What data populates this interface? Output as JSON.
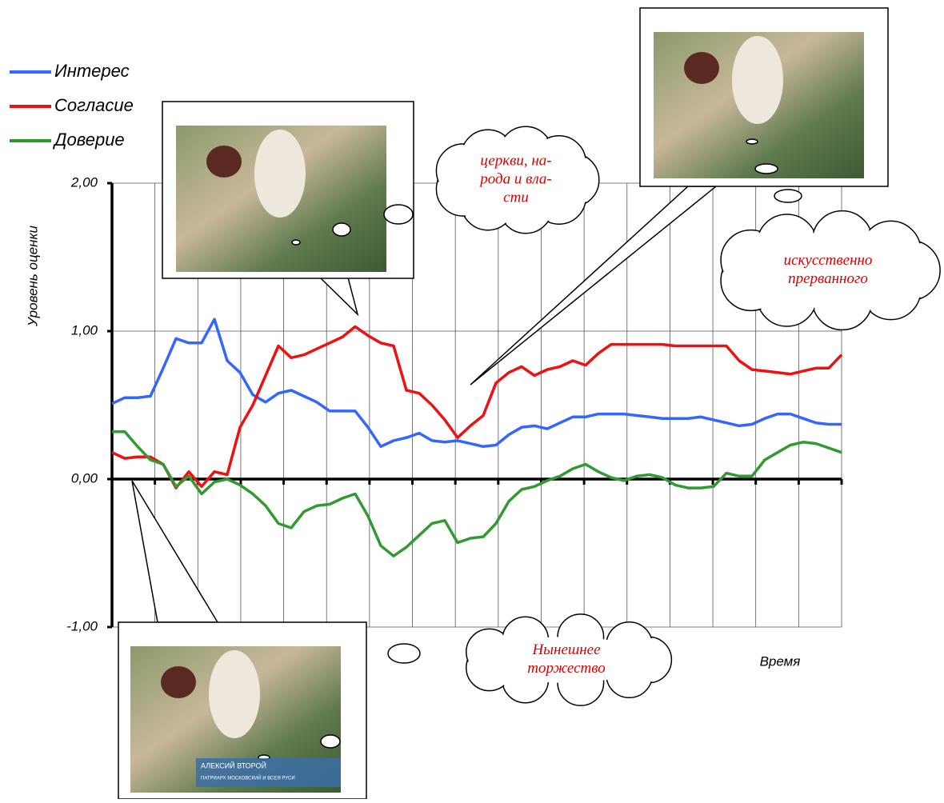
{
  "chart_data": {
    "type": "line",
    "y_label": "Уровень оценки",
    "x_label": "Время",
    "ylim": [
      -1,
      2
    ],
    "yticks": [
      {
        "value": -1,
        "label": "-1,00"
      },
      {
        "value": 0,
        "label": "0,00"
      },
      {
        "value": 1,
        "label": "1,00"
      },
      {
        "value": 2,
        "label": "2,00"
      }
    ],
    "x_divisions": 17,
    "grid": true,
    "legend": "top-left",
    "series": [
      {
        "name": "Интерес",
        "color": "#3366ff",
        "values": [
          0.51,
          0.55,
          0.55,
          0.56,
          0.75,
          0.95,
          0.92,
          0.92,
          1.08,
          0.8,
          0.72,
          0.57,
          0.52,
          0.58,
          0.6,
          0.56,
          0.52,
          0.46,
          0.46,
          0.46,
          0.35,
          0.22,
          0.26,
          0.28,
          0.31,
          0.26,
          0.25,
          0.26,
          0.24,
          0.22,
          0.23,
          0.3,
          0.35,
          0.36,
          0.34,
          0.38,
          0.42,
          0.42,
          0.44,
          0.44,
          0.44,
          0.43,
          0.42,
          0.41,
          0.41,
          0.41,
          0.42,
          0.4,
          0.38,
          0.36,
          0.37,
          0.41,
          0.44,
          0.44,
          0.41,
          0.38,
          0.37,
          0.37
        ]
      },
      {
        "name": "Согласие",
        "color": "#ee1111",
        "values": [
          0.18,
          0.14,
          0.15,
          0.15,
          0.1,
          -0.06,
          0.05,
          -0.05,
          0.05,
          0.03,
          0.35,
          0.5,
          0.7,
          0.9,
          0.82,
          0.84,
          0.88,
          0.92,
          0.96,
          1.03,
          0.97,
          0.92,
          0.9,
          0.6,
          0.58,
          0.5,
          0.4,
          0.28,
          0.36,
          0.43,
          0.65,
          0.72,
          0.76,
          0.7,
          0.74,
          0.76,
          0.8,
          0.77,
          0.85,
          0.91,
          0.91,
          0.91,
          0.91,
          0.91,
          0.9,
          0.9,
          0.9,
          0.9,
          0.9,
          0.8,
          0.74,
          0.73,
          0.72,
          0.71,
          0.73,
          0.75,
          0.75,
          0.84
        ]
      },
      {
        "name": "Доверие",
        "color": "#339933",
        "values": [
          0.32,
          0.32,
          0.22,
          0.13,
          0.1,
          -0.05,
          0.02,
          -0.1,
          -0.02,
          0.0,
          -0.04,
          -0.1,
          -0.18,
          -0.3,
          -0.33,
          -0.22,
          -0.18,
          -0.17,
          -0.13,
          -0.1,
          -0.25,
          -0.45,
          -0.52,
          -0.46,
          -0.38,
          -0.3,
          -0.28,
          -0.43,
          -0.4,
          -0.39,
          -0.3,
          -0.15,
          -0.07,
          -0.05,
          -0.01,
          0.02,
          0.07,
          0.1,
          0.05,
          0.01,
          -0.01,
          0.02,
          0.03,
          0.01,
          -0.04,
          -0.06,
          -0.06,
          -0.05,
          0.04,
          0.02,
          0.02,
          0.13,
          0.18,
          0.23,
          0.25,
          0.24,
          0.21,
          0.18
        ]
      }
    ],
    "annotations": [
      {
        "lines": [
          "церкви, на-",
          "рода и вла-",
          "сти"
        ]
      },
      {
        "lines": [
          "искусственно",
          "прерванного"
        ]
      },
      {
        "lines": [
          "Нынешнее",
          "торжество"
        ]
      }
    ],
    "photo_caption": [
      "АЛЕКСИЙ ВТОРОЙ",
      "ПАТРИАРХ МОСКОВСКИЙ И ВСЕЯ РУСИ"
    ]
  }
}
